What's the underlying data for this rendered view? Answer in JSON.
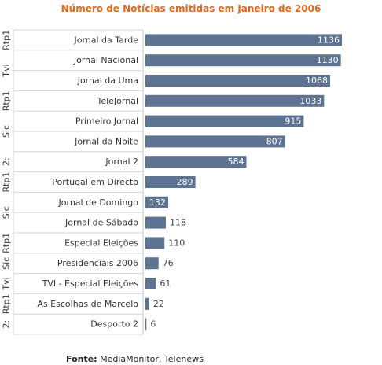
{
  "chart_data": {
    "type": "bar",
    "orientation": "horizontal",
    "title": "Número de Notícias emitidas em Janeiro de 2006",
    "categories": [
      "Jornal da Tarde",
      "Jornal Nacional",
      "Jornal da Uma",
      "TeleJornal",
      "Primeiro Jornal",
      "Jornal da Noite",
      "Jornal 2",
      "Portugal em Directo",
      "Jornal de Domingo",
      "Jornal de Sábado",
      "Especial Eleições",
      "Presidenciais 2006",
      "TVI - Especial Eleições",
      "As Escolhas de Marcelo",
      "Desporto 2"
    ],
    "values": [
      1136,
      1130,
      1068,
      1033,
      915,
      807,
      584,
      289,
      132,
      118,
      110,
      76,
      61,
      22,
      6
    ],
    "channels": [
      "Rtp1",
      "Tvi",
      "Tvi",
      "Rtp1",
      "Sic",
      "Sic",
      "2:",
      "Rtp1",
      "Sic",
      "Sic",
      "Rtp1",
      "Sic",
      "Tvi",
      "Rtp1",
      "2:"
    ],
    "xlim": [
      0,
      1136
    ],
    "bar_color": "#5d7391",
    "label_color": "#ffffff",
    "grid": false,
    "legend": "none"
  },
  "source": {
    "label": "Fonte:",
    "text": "MediaMonitor, Telenews"
  }
}
